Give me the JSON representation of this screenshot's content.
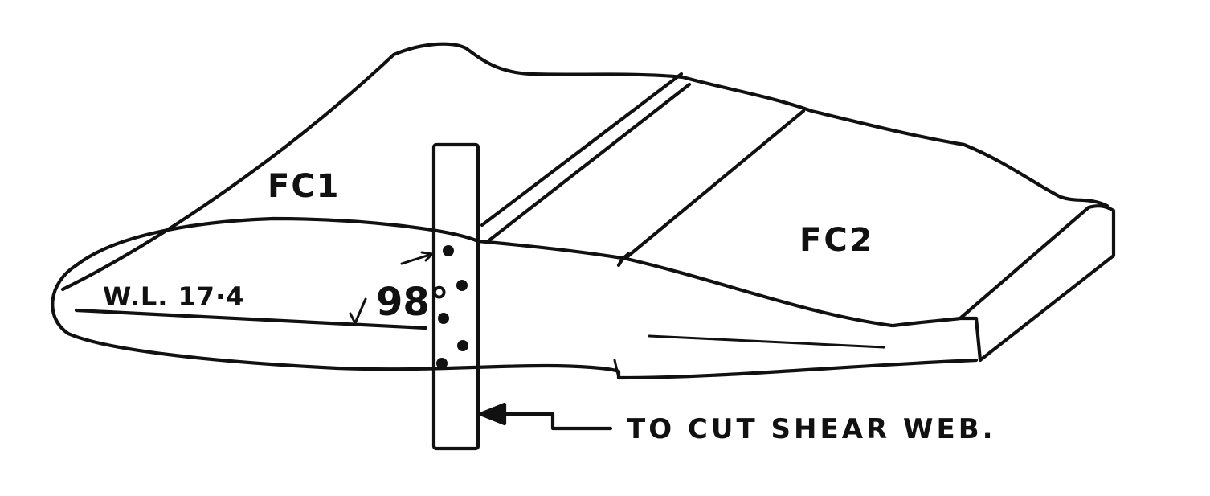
{
  "labels": {
    "panel_left": "FC1",
    "panel_right": "FC2",
    "waterline": "W.L. 17·4",
    "angle": "98°",
    "note": "TO CUT SHEAR WEB."
  },
  "colors": {
    "ink": "#111111",
    "paper": "#ffffff"
  }
}
